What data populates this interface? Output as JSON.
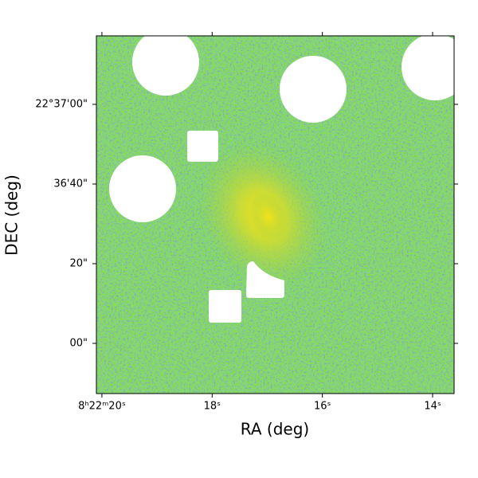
{
  "chart_data": {
    "type": "image",
    "x_label": "RA (deg)",
    "y_label": "DEC (deg)",
    "xlim": [
      20.1,
      13.61
    ],
    "ylim": [
      -12.6,
      77.2
    ],
    "xticks": [
      {
        "value": 20,
        "label": "8ʰ22ᵐ20ˢ"
      },
      {
        "value": 18,
        "label": "18ˢ"
      },
      {
        "value": 16,
        "label": "16ˢ"
      },
      {
        "value": 14,
        "label": "14ˢ"
      }
    ],
    "yticks": [
      {
        "value": 60,
        "label": "22°37'00\""
      },
      {
        "value": 40,
        "label": "36'40\""
      },
      {
        "value": 20,
        "label": "20\""
      },
      {
        "value": 0,
        "label": "00\""
      }
    ]
  }
}
